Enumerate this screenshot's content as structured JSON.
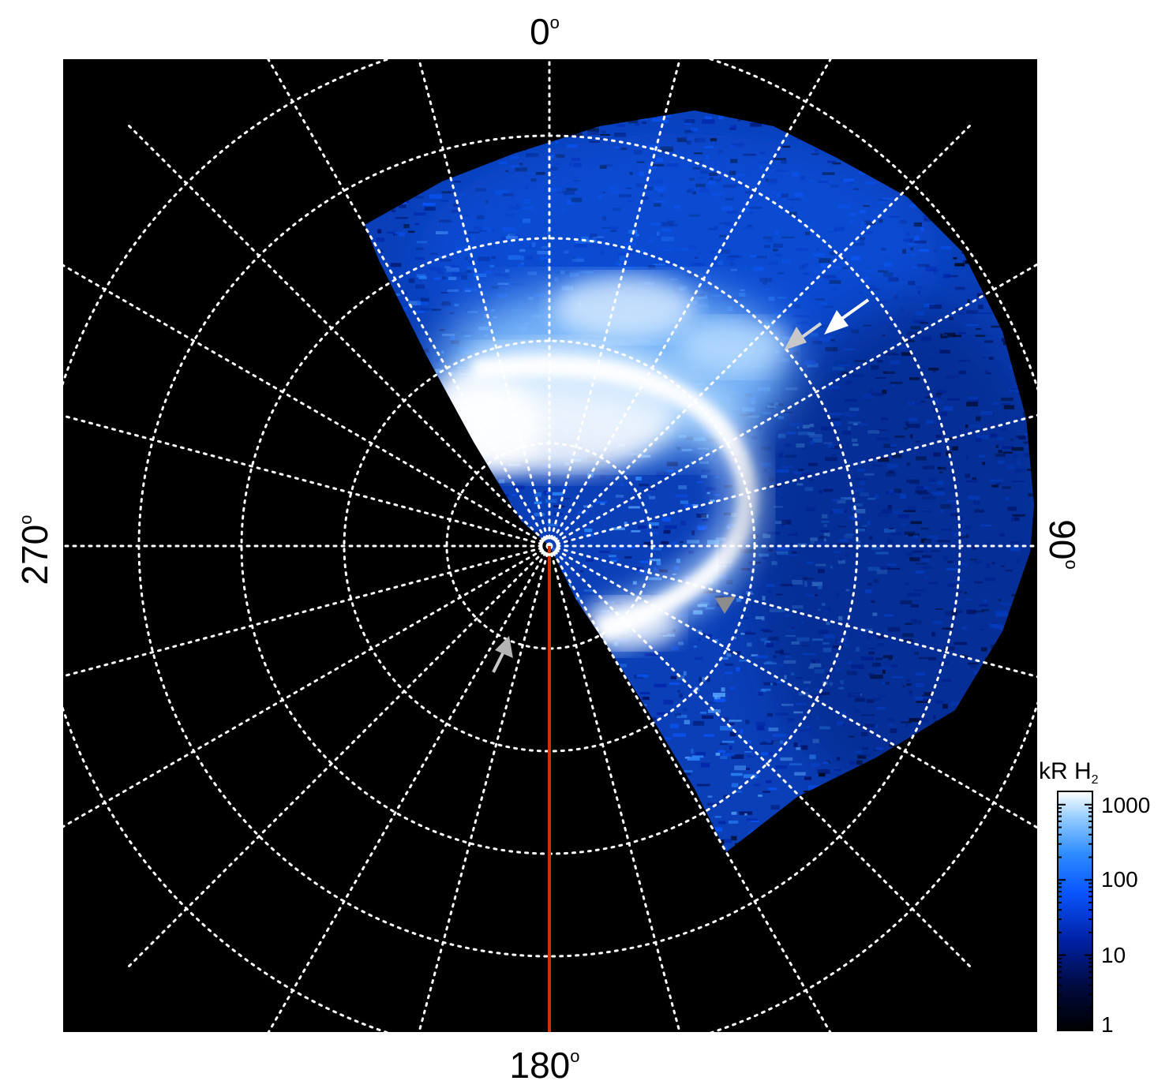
{
  "figure": {
    "labels": {
      "top": "0",
      "bottom": "180",
      "left": "270",
      "right": "90",
      "degree_symbol": "o"
    },
    "colorbar": {
      "title_main": "kR H",
      "title_sub": "2",
      "ticks": [
        "1000",
        "100",
        "10",
        "1"
      ],
      "scale": "log",
      "range": [
        1,
        1500
      ],
      "colors": [
        "#000000",
        "#000a3c",
        "#0021a6",
        "#0a56ff",
        "#2e8cff",
        "#8cc8ff",
        "#ffffff"
      ]
    },
    "plot": {
      "background": "#000000",
      "grid_color": "#ffffff",
      "reference_line_color": "#cc3300",
      "arrow_colors": {
        "white": "#ffffff",
        "grey": "#b4b4b4",
        "dark_grey": "#8c8c8c"
      }
    }
  }
}
